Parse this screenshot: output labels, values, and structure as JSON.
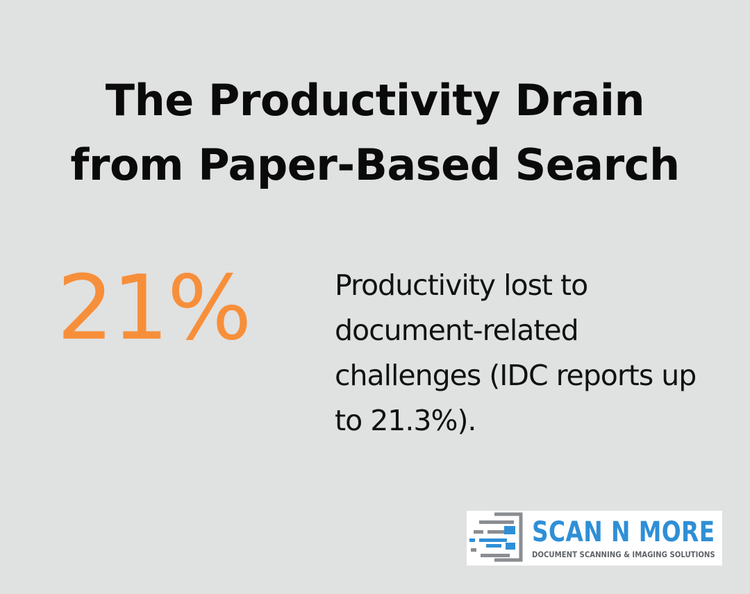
{
  "title": {
    "line1": "The Productivity Drain",
    "line2": "from Paper-Based Search"
  },
  "stat": {
    "value": "21%",
    "description": "Productivity lost to document-related challenges (IDC reports up to 21.3%)."
  },
  "logo": {
    "name": "SCAN N MORE",
    "tagline": "DOCUMENT SCANNING & IMAGING SOLUTIONS",
    "icon": "scanner-lines-icon"
  },
  "colors": {
    "background": "#e0e1e1",
    "accent": "#f78f3a",
    "title": "#0a0a0a",
    "brand_blue": "#2f8fd6",
    "brand_gray": "#5f6368"
  }
}
